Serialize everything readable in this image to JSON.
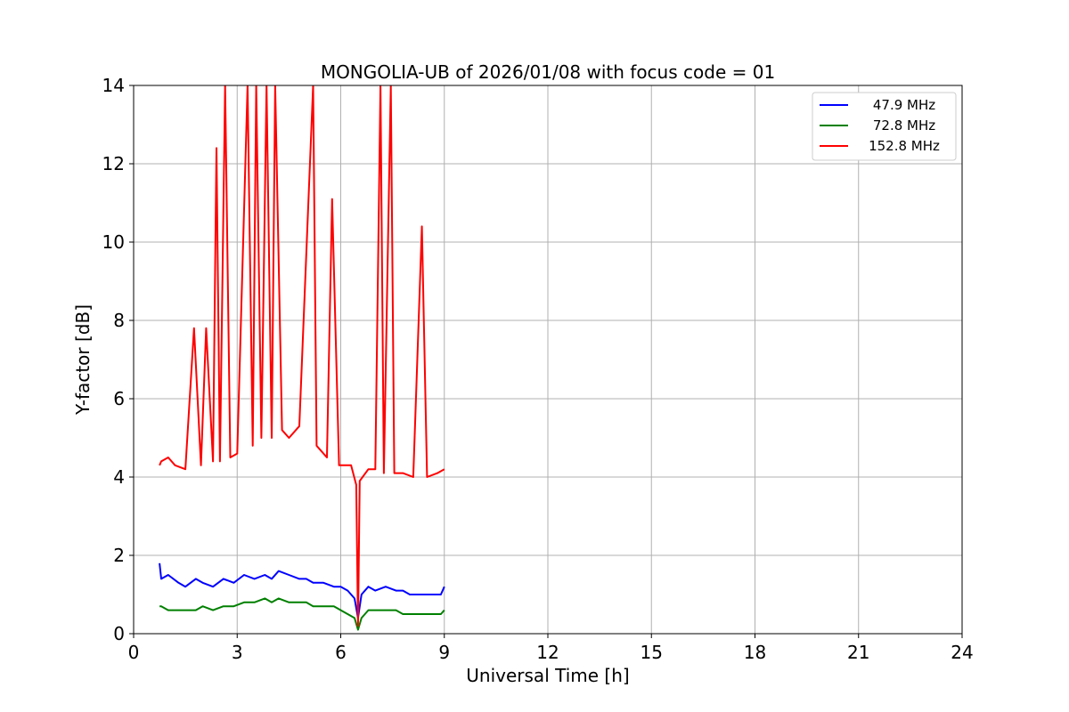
{
  "chart_data": {
    "type": "line",
    "title": "MONGOLIA-UB of 2026/01/08 with focus code = 01",
    "xlabel": "Universal Time [h]",
    "ylabel": "Y-factor [dB]",
    "xlim": [
      0,
      24
    ],
    "ylim": [
      0,
      14
    ],
    "xticks": [
      0,
      3,
      6,
      9,
      12,
      15,
      18,
      21,
      24
    ],
    "yticks": [
      0,
      2,
      4,
      6,
      8,
      10,
      12,
      14
    ],
    "xtick_labels": [
      "0",
      "3",
      "6",
      "9",
      "12",
      "15",
      "18",
      "21",
      "24"
    ],
    "ytick_labels": [
      "0",
      "2",
      "4",
      "6",
      "8",
      "10",
      "12",
      "14"
    ],
    "grid": true,
    "legend_position": "top-right",
    "series": [
      {
        "name": " 47.9 MHz",
        "color": "#0000ff",
        "x": [
          0.75,
          0.8,
          1.0,
          1.3,
          1.5,
          1.8,
          2.0,
          2.3,
          2.6,
          2.9,
          3.2,
          3.5,
          3.8,
          4.0,
          4.2,
          4.5,
          4.8,
          5.0,
          5.2,
          5.5,
          5.8,
          6.0,
          6.2,
          6.4,
          6.5,
          6.6,
          6.8,
          7.0,
          7.3,
          7.6,
          7.8,
          8.0,
          8.3,
          8.6,
          8.9,
          9.0
        ],
        "values": [
          1.8,
          1.4,
          1.5,
          1.3,
          1.2,
          1.4,
          1.3,
          1.2,
          1.4,
          1.3,
          1.5,
          1.4,
          1.5,
          1.4,
          1.6,
          1.5,
          1.4,
          1.4,
          1.3,
          1.3,
          1.2,
          1.2,
          1.1,
          0.9,
          0.4,
          1.0,
          1.2,
          1.1,
          1.2,
          1.1,
          1.1,
          1.0,
          1.0,
          1.0,
          1.0,
          1.2
        ]
      },
      {
        "name": " 72.8 MHz",
        "color": "#008000",
        "x": [
          0.75,
          0.8,
          1.0,
          1.3,
          1.5,
          1.8,
          2.0,
          2.3,
          2.6,
          2.9,
          3.2,
          3.5,
          3.8,
          4.0,
          4.2,
          4.5,
          4.8,
          5.0,
          5.2,
          5.5,
          5.8,
          6.0,
          6.2,
          6.4,
          6.5,
          6.6,
          6.8,
          7.0,
          7.3,
          7.6,
          7.8,
          8.0,
          8.3,
          8.6,
          8.9,
          9.0
        ],
        "values": [
          0.7,
          0.7,
          0.6,
          0.6,
          0.6,
          0.6,
          0.7,
          0.6,
          0.7,
          0.7,
          0.8,
          0.8,
          0.9,
          0.8,
          0.9,
          0.8,
          0.8,
          0.8,
          0.7,
          0.7,
          0.7,
          0.6,
          0.5,
          0.4,
          0.1,
          0.4,
          0.6,
          0.6,
          0.6,
          0.6,
          0.5,
          0.5,
          0.5,
          0.5,
          0.5,
          0.6
        ]
      },
      {
        "name": "152.8 MHz",
        "color": "#ff0000",
        "x": [
          0.75,
          0.8,
          1.0,
          1.2,
          1.5,
          1.75,
          1.95,
          2.1,
          2.3,
          2.4,
          2.5,
          2.65,
          2.8,
          3.0,
          3.3,
          3.45,
          3.55,
          3.7,
          3.85,
          4.0,
          4.1,
          4.3,
          4.5,
          4.8,
          5.2,
          5.3,
          5.6,
          5.75,
          5.95,
          6.3,
          6.45,
          6.5,
          6.55,
          6.8,
          7.0,
          7.15,
          7.25,
          7.45,
          7.55,
          7.8,
          8.1,
          8.35,
          8.5,
          8.8,
          9.0
        ],
        "values": [
          4.3,
          4.4,
          4.5,
          4.3,
          4.2,
          7.8,
          4.3,
          7.8,
          4.4,
          12.4,
          4.4,
          14.0,
          4.5,
          4.6,
          14.0,
          4.8,
          14.0,
          5.0,
          14.0,
          5.0,
          14.0,
          5.2,
          5.0,
          5.3,
          14.0,
          4.8,
          4.5,
          11.1,
          4.3,
          4.3,
          3.8,
          0.2,
          3.9,
          4.2,
          4.2,
          14.0,
          4.1,
          14.0,
          4.1,
          4.1,
          4.0,
          10.4,
          4.0,
          4.1,
          4.2
        ]
      }
    ]
  }
}
